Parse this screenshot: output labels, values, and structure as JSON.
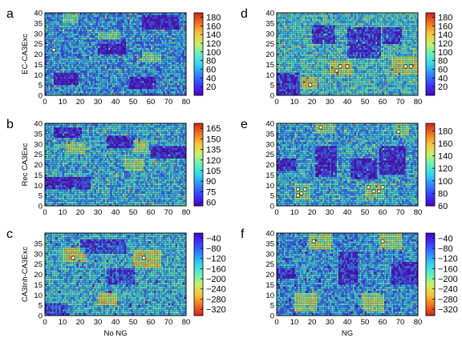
{
  "colormap": [
    "#4a00c8",
    "#3c39ff",
    "#2f86ff",
    "#35d4f0",
    "#63f0c0",
    "#c8f06a",
    "#f6c53a",
    "#f27021",
    "#d0231b"
  ],
  "marker_color": "#f5f0c8",
  "grid_color": "#3a3a3a",
  "chart_data": [
    {
      "type": "heatmap",
      "panel": "a",
      "ylabel": "EC-CA3Exc",
      "xlabel": "",
      "xticks": [
        "0",
        "10",
        "20",
        "30",
        "40",
        "50",
        "60",
        "70",
        "80"
      ],
      "yticks": [
        "0",
        "5",
        "10",
        "15",
        "20",
        "25",
        "30",
        "35",
        "40"
      ],
      "xlim": [
        0,
        80
      ],
      "ylim": [
        0,
        40
      ],
      "grid": "on",
      "colorbar": {
        "ticks": [
          "180",
          "160",
          "140",
          "120",
          "100",
          "80",
          "60",
          "40",
          "20"
        ],
        "range": [
          0,
          190
        ]
      },
      "mean_value": 55,
      "low_regions": [
        [
          5,
          18,
          5,
          10
        ],
        [
          48,
          62,
          3,
          8
        ],
        [
          55,
          75,
          32,
          38
        ],
        [
          30,
          45,
          20,
          26
        ]
      ],
      "high_regions": [
        [
          30,
          42,
          25,
          30
        ],
        [
          55,
          65,
          16,
          20
        ],
        [
          10,
          18,
          35,
          40
        ]
      ],
      "markers": [
        [
          5,
          22
        ]
      ]
    },
    {
      "type": "heatmap",
      "panel": "d",
      "ylabel": "",
      "xlabel": "",
      "xticks": [
        "0",
        "10",
        "20",
        "30",
        "40",
        "50",
        "60",
        "70",
        "80"
      ],
      "yticks": [
        "0",
        "5",
        "10",
        "15",
        "20",
        "25",
        "30",
        "35",
        "40"
      ],
      "xlim": [
        0,
        80
      ],
      "ylim": [
        0,
        40
      ],
      "grid": "on",
      "colorbar": {
        "ticks": [
          "180",
          "160",
          "140",
          "120",
          "100",
          "80",
          "60",
          "40",
          "20"
        ],
        "range": [
          0,
          190
        ]
      },
      "mean_value": 75,
      "low_regions": [
        [
          40,
          58,
          18,
          32
        ],
        [
          0,
          12,
          0,
          10
        ],
        [
          60,
          70,
          25,
          32
        ],
        [
          20,
          32,
          25,
          33
        ]
      ],
      "high_regions": [
        [
          30,
          42,
          10,
          16
        ],
        [
          65,
          80,
          10,
          18
        ],
        [
          14,
          22,
          3,
          8
        ]
      ],
      "markers": [
        [
          19,
          5
        ],
        [
          34,
          12
        ],
        [
          36,
          14
        ],
        [
          40,
          14
        ],
        [
          73,
          14
        ],
        [
          76,
          14
        ]
      ]
    },
    {
      "type": "heatmap",
      "panel": "b",
      "ylabel": "Rec CA3Exc",
      "xlabel": "",
      "xticks": [
        "0",
        "10",
        "20",
        "30",
        "40",
        "50",
        "60",
        "70",
        "80"
      ],
      "yticks": [
        "0",
        "5",
        "10",
        "15",
        "20",
        "25",
        "30",
        "35",
        "40"
      ],
      "xlim": [
        0,
        80
      ],
      "ylim": [
        0,
        40
      ],
      "grid": "on",
      "colorbar": {
        "ticks": [
          "165",
          "150",
          "135",
          "120",
          "105",
          "90",
          "75",
          "60"
        ],
        "range": [
          55,
          172
        ]
      },
      "mean_value": 95,
      "low_regions": [
        [
          60,
          80,
          23,
          28
        ],
        [
          0,
          25,
          8,
          13
        ],
        [
          35,
          50,
          28,
          33
        ],
        [
          5,
          20,
          33,
          37
        ]
      ],
      "high_regions": [
        [
          12,
          22,
          25,
          30
        ],
        [
          50,
          58,
          25,
          31
        ],
        [
          45,
          55,
          17,
          22
        ]
      ],
      "markers": []
    },
    {
      "type": "heatmap",
      "panel": "e",
      "ylabel": "",
      "xlabel": "",
      "xticks": [
        "0",
        "10",
        "20",
        "30",
        "40",
        "50",
        "60",
        "70",
        "80"
      ],
      "yticks": [
        "0",
        "5",
        "10",
        "15",
        "20",
        "25",
        "30",
        "35",
        "40"
      ],
      "xlim": [
        0,
        80
      ],
      "ylim": [
        0,
        40
      ],
      "grid": "on",
      "colorbar": {
        "ticks": [
          "180",
          "160",
          "140",
          "120",
          "100",
          "80",
          "60"
        ],
        "range": [
          60,
          192
        ]
      },
      "mean_value": 105,
      "low_regions": [
        [
          42,
          56,
          13,
          22
        ],
        [
          22,
          33,
          14,
          28
        ],
        [
          58,
          72,
          15,
          28
        ],
        [
          0,
          10,
          17,
          22
        ]
      ],
      "high_regions": [
        [
          10,
          18,
          3,
          10
        ],
        [
          50,
          60,
          3,
          10
        ],
        [
          22,
          32,
          35,
          40
        ],
        [
          66,
          74,
          34,
          40
        ]
      ],
      "markers": [
        [
          12,
          8
        ],
        [
          14,
          6
        ],
        [
          16,
          8
        ],
        [
          12,
          5
        ],
        [
          25,
          38
        ],
        [
          52,
          9
        ],
        [
          55,
          7
        ],
        [
          58,
          7
        ],
        [
          60,
          9
        ],
        [
          69,
          36
        ]
      ]
    },
    {
      "type": "heatmap",
      "panel": "c",
      "ylabel": "CA3Inh-CA3Exc",
      "xlabel": "No NG",
      "xticks": [
        "0",
        "10",
        "20",
        "30",
        "40",
        "50",
        "60",
        "70",
        "80"
      ],
      "yticks": [
        "0",
        "5",
        "10",
        "15",
        "20",
        "25",
        "30",
        "35"
      ],
      "xlim": [
        0,
        80
      ],
      "ylim": [
        0,
        40
      ],
      "grid": "on",
      "colorbar": {
        "ticks": [
          "−40",
          "−80",
          "−120",
          "−160",
          "−200",
          "−240",
          "−280",
          "−320"
        ],
        "range": [
          -345,
          -20
        ],
        "reversed": true
      },
      "mean_value": -140,
      "low_regions": [
        [
          50,
          65,
          23,
          31
        ],
        [
          10,
          22,
          26,
          32
        ],
        [
          30,
          40,
          5,
          10
        ]
      ],
      "high_regions": [
        [
          0,
          12,
          0,
          5
        ],
        [
          35,
          50,
          15,
          22
        ],
        [
          20,
          45,
          30,
          36
        ]
      ],
      "markers": [
        [
          16,
          28
        ],
        [
          56,
          28
        ]
      ]
    },
    {
      "type": "heatmap",
      "panel": "f",
      "ylabel": "",
      "xlabel": "NG",
      "xticks": [
        "0",
        "10",
        "20",
        "30",
        "40",
        "50",
        "60",
        "70",
        "80"
      ],
      "yticks": [
        "0",
        "5",
        "10",
        "15",
        "20",
        "25",
        "30",
        "35",
        "40"
      ],
      "xlim": [
        0,
        80
      ],
      "ylim": [
        0,
        40
      ],
      "grid": "on",
      "colorbar": {
        "ticks": [
          "−40",
          "−80",
          "−120",
          "−160",
          "−200",
          "−240",
          "−280",
          "−320"
        ],
        "range": [
          -345,
          -20
        ],
        "reversed": true
      },
      "mean_value": -120,
      "low_regions": [
        [
          10,
          22,
          2,
          10
        ],
        [
          48,
          60,
          2,
          10
        ],
        [
          18,
          30,
          32,
          40
        ],
        [
          58,
          70,
          32,
          40
        ]
      ],
      "high_regions": [
        [
          35,
          45,
          15,
          30
        ],
        [
          65,
          80,
          15,
          25
        ],
        [
          0,
          10,
          18,
          22
        ]
      ],
      "markers": [
        [
          21,
          36
        ],
        [
          60,
          36
        ]
      ]
    }
  ]
}
